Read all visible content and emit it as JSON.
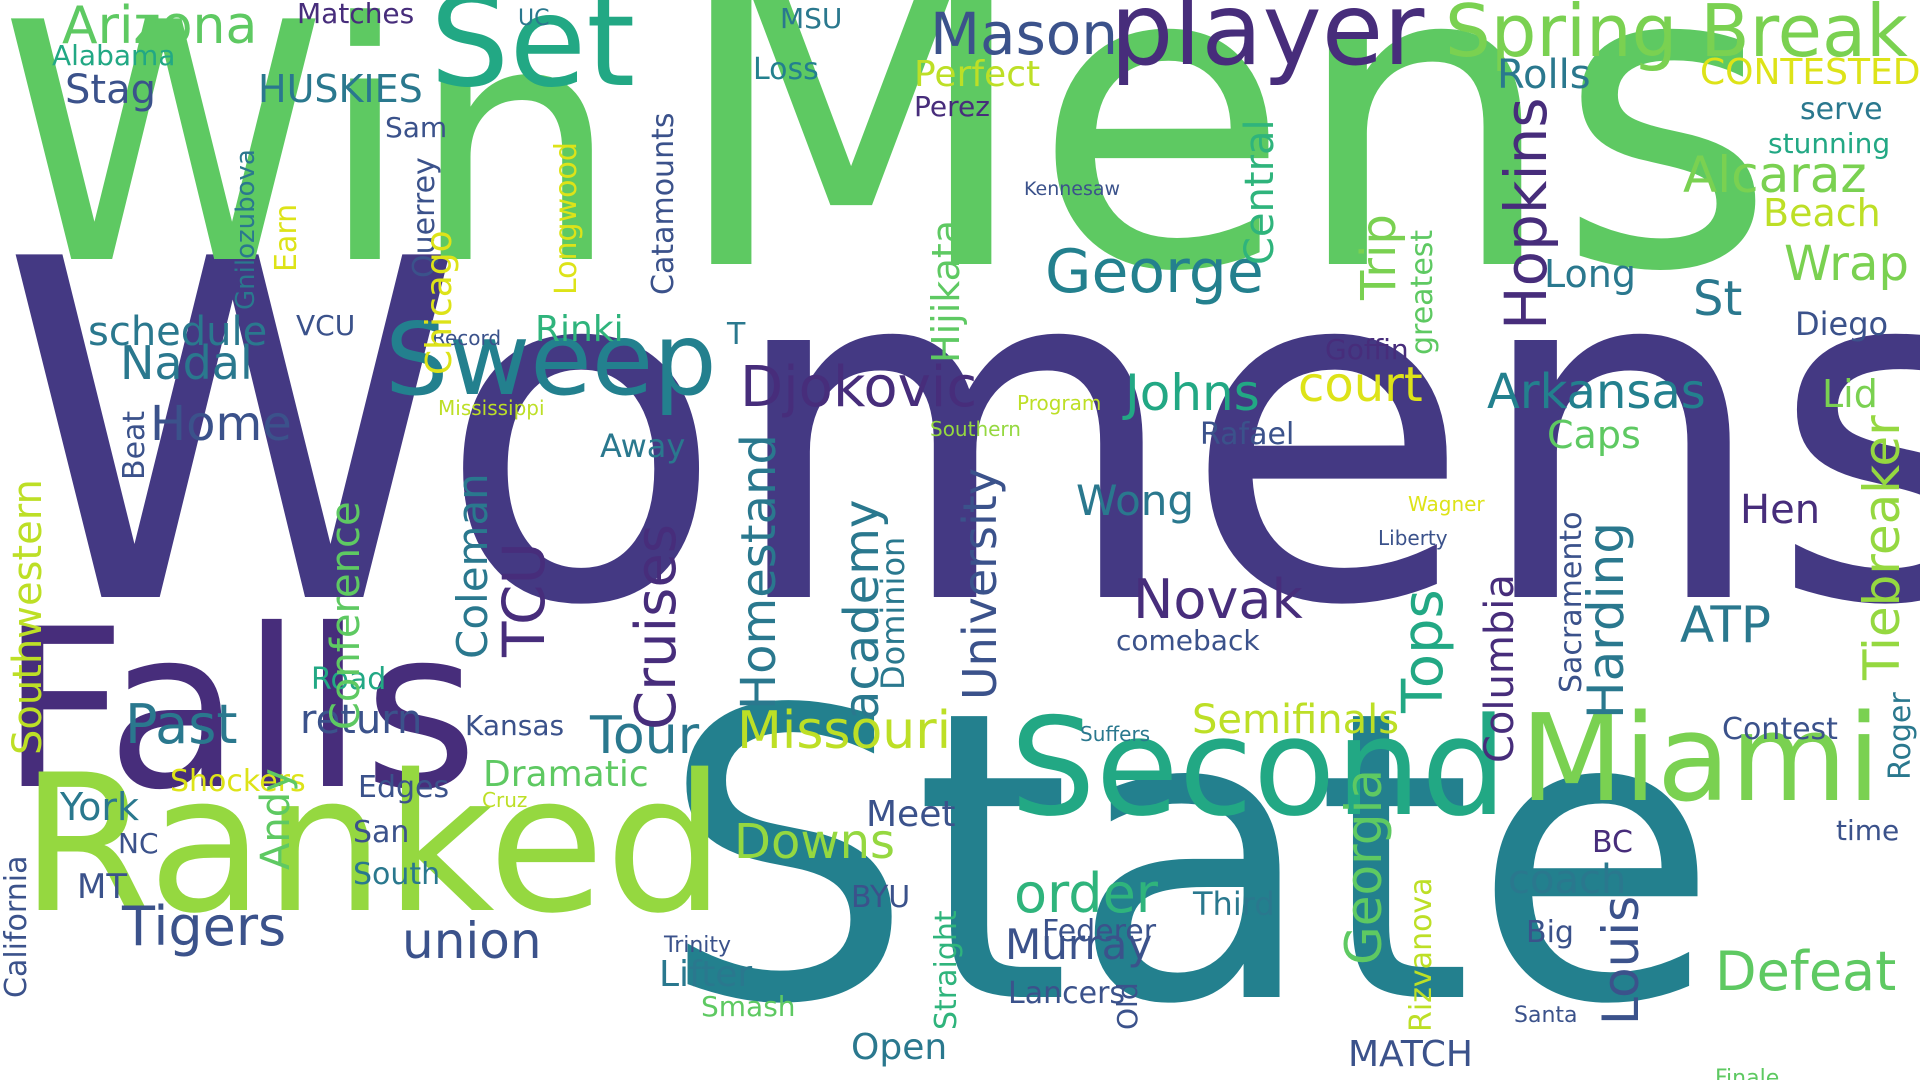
{
  "words": [
    {
      "text": "Mens",
      "color": "#5ec962",
      "orientation": "horizontal"
    },
    {
      "text": "Womens",
      "color": "#443983",
      "orientation": "horizontal"
    },
    {
      "text": "Win",
      "color": "#5ec962",
      "orientation": "horizontal"
    },
    {
      "text": "State",
      "color": "#23808e",
      "orientation": "horizontal"
    },
    {
      "text": "Falls",
      "color": "#472d7b",
      "orientation": "horizontal"
    },
    {
      "text": "Ranked",
      "color": "#95d840",
      "orientation": "horizontal"
    },
    {
      "text": "Second",
      "color": "#22a884",
      "orientation": "horizontal"
    },
    {
      "text": "Miami",
      "color": "#7ad151",
      "orientation": "horizontal"
    },
    {
      "text": "Set",
      "color": "#22a884",
      "orientation": "horizontal"
    },
    {
      "text": "player",
      "color": "#472d7b",
      "orientation": "horizontal"
    },
    {
      "text": "Sweep",
      "color": "#23808e",
      "orientation": "horizontal"
    },
    {
      "text": "Spring Break",
      "color": "#7ad151",
      "orientation": "horizontal"
    },
    {
      "text": "Arizona",
      "color": "#5ec962",
      "orientation": "horizontal"
    },
    {
      "text": "Mason",
      "color": "#3b528b",
      "orientation": "horizontal"
    },
    {
      "text": "George",
      "color": "#23808e",
      "orientation": "horizontal"
    },
    {
      "text": "Djokovic",
      "color": "#472d7b",
      "orientation": "horizontal"
    },
    {
      "text": "Johns",
      "color": "#22a884",
      "orientation": "horizontal"
    },
    {
      "text": "court",
      "color": "#dde318",
      "orientation": "horizontal"
    },
    {
      "text": "Arkansas",
      "color": "#23808e",
      "orientation": "horizontal"
    },
    {
      "text": "Alcaraz",
      "color": "#7ad151",
      "orientation": "horizontal"
    },
    {
      "text": "Wrap",
      "color": "#7ad151",
      "orientation": "horizontal"
    },
    {
      "text": "Nadal",
      "color": "#2a788e",
      "orientation": "horizontal"
    },
    {
      "text": "Home",
      "color": "#3b528b",
      "orientation": "horizontal"
    },
    {
      "text": "Novak",
      "color": "#472d7b",
      "orientation": "horizontal"
    },
    {
      "text": "Past",
      "color": "#2a788e",
      "orientation": "horizontal"
    },
    {
      "text": "Missouri",
      "color": "#bddf26",
      "orientation": "horizontal"
    },
    {
      "text": "Tour",
      "color": "#2a788e",
      "orientation": "horizontal"
    },
    {
      "text": "Semifinals",
      "color": "#bddf26",
      "orientation": "horizontal"
    },
    {
      "text": "return",
      "color": "#3b528b",
      "orientation": "horizontal"
    },
    {
      "text": "Downs",
      "color": "#95d840",
      "orientation": "horizontal"
    },
    {
      "text": "order",
      "color": "#2fb47c",
      "orientation": "horizontal"
    },
    {
      "text": "Tigers",
      "color": "#3b528b",
      "orientation": "horizontal"
    },
    {
      "text": "union",
      "color": "#3b528b",
      "orientation": "horizontal"
    },
    {
      "text": "Murray",
      "color": "#3b528b",
      "orientation": "horizontal"
    },
    {
      "text": "Defeat",
      "color": "#5ec962",
      "orientation": "horizontal"
    },
    {
      "text": "coach",
      "color": "#2a788e",
      "orientation": "horizontal"
    },
    {
      "text": "ATP",
      "color": "#2a788e",
      "orientation": "horizontal"
    },
    {
      "text": "Wong",
      "color": "#2a788e",
      "orientation": "horizontal"
    },
    {
      "text": "Hen",
      "color": "#472d7b",
      "orientation": "horizontal"
    },
    {
      "text": "St",
      "color": "#2a788e",
      "orientation": "horizontal"
    },
    {
      "text": "Long",
      "color": "#2a788e",
      "orientation": "horizontal"
    },
    {
      "text": "Beach",
      "color": "#bddf26",
      "orientation": "horizontal"
    },
    {
      "text": "Caps",
      "color": "#5ec962",
      "orientation": "horizontal"
    },
    {
      "text": "Lid",
      "color": "#7ad151",
      "orientation": "horizontal"
    },
    {
      "text": "serve",
      "color": "#2a788e",
      "orientation": "horizontal"
    },
    {
      "text": "stunning",
      "color": "#22a884",
      "orientation": "horizontal"
    },
    {
      "text": "Rolls",
      "color": "#2a788e",
      "orientation": "horizontal"
    },
    {
      "text": "CONTESTED",
      "color": "#dde318",
      "orientation": "horizontal"
    },
    {
      "text": "Perfect",
      "color": "#bddf26",
      "orientation": "horizontal"
    },
    {
      "text": "Perez",
      "color": "#472d7b",
      "orientation": "horizontal"
    },
    {
      "text": "Loss",
      "color": "#23808e",
      "orientation": "horizontal"
    },
    {
      "text": "MSU",
      "color": "#2a788e",
      "orientation": "horizontal"
    },
    {
      "text": "UC",
      "color": "#2a788e",
      "orientation": "horizontal"
    },
    {
      "text": "Matches",
      "color": "#472d7b",
      "orientation": "horizontal"
    },
    {
      "text": "Alabama",
      "color": "#22a884",
      "orientation": "horizontal"
    },
    {
      "text": "Stag",
      "color": "#3b528b",
      "orientation": "horizontal"
    },
    {
      "text": "HUSKIES",
      "color": "#2a788e",
      "orientation": "horizontal"
    },
    {
      "text": "Sam",
      "color": "#3b528b",
      "orientation": "horizontal"
    },
    {
      "text": "schedule",
      "color": "#2a788e",
      "orientation": "horizontal"
    },
    {
      "text": "VCU",
      "color": "#3b528b",
      "orientation": "horizontal"
    },
    {
      "text": "Rinki",
      "color": "#2fb47c",
      "orientation": "horizontal"
    },
    {
      "text": "Record",
      "color": "#3b528b",
      "orientation": "horizontal"
    },
    {
      "text": "Mississippi",
      "color": "#bddf26",
      "orientation": "horizontal"
    },
    {
      "text": "Program",
      "color": "#bddf26",
      "orientation": "horizontal"
    },
    {
      "text": "Southern",
      "color": "#95d840",
      "orientation": "horizontal"
    },
    {
      "text": "T",
      "color": "#2a788e",
      "orientation": "horizontal"
    },
    {
      "text": "Goffin",
      "color": "#472d7b",
      "orientation": "horizontal"
    },
    {
      "text": "Diego",
      "color": "#3b528b",
      "orientation": "horizontal"
    },
    {
      "text": "Rafael",
      "color": "#3b528b",
      "orientation": "horizontal"
    },
    {
      "text": "Kennesaw",
      "color": "#3b528b",
      "orientation": "horizontal"
    },
    {
      "text": "Away",
      "color": "#2a788e",
      "orientation": "horizontal"
    },
    {
      "text": "Wagner",
      "color": "#dde318",
      "orientation": "horizontal"
    },
    {
      "text": "Liberty",
      "color": "#3b528b",
      "orientation": "horizontal"
    },
    {
      "text": "comeback",
      "color": "#3b528b",
      "orientation": "horizontal"
    },
    {
      "text": "Road",
      "color": "#22a884",
      "orientation": "horizontal"
    },
    {
      "text": "Kansas",
      "color": "#3b528b",
      "orientation": "horizontal"
    },
    {
      "text": "Suffers",
      "color": "#2a788e",
      "orientation": "horizontal"
    },
    {
      "text": "Contest",
      "color": "#3b528b",
      "orientation": "horizontal"
    },
    {
      "text": "Shockers",
      "color": "#dde318",
      "orientation": "horizontal"
    },
    {
      "text": "Dramatic",
      "color": "#5ec962",
      "orientation": "horizontal"
    },
    {
      "text": "Edges",
      "color": "#3b528b",
      "orientation": "horizontal"
    },
    {
      "text": "Cruz",
      "color": "#bddf26",
      "orientation": "horizontal"
    },
    {
      "text": "York",
      "color": "#2a788e",
      "orientation": "horizontal"
    },
    {
      "text": "NC",
      "color": "#3b528b",
      "orientation": "horizontal"
    },
    {
      "text": "San",
      "color": "#3b528b",
      "orientation": "horizontal"
    },
    {
      "text": "Meet",
      "color": "#3b528b",
      "orientation": "horizontal"
    },
    {
      "text": "BC",
      "color": "#472d7b",
      "orientation": "horizontal"
    },
    {
      "text": "time",
      "color": "#3b528b",
      "orientation": "horizontal"
    },
    {
      "text": "MT",
      "color": "#3b528b",
      "orientation": "horizontal"
    },
    {
      "text": "South",
      "color": "#2a788e",
      "orientation": "horizontal"
    },
    {
      "text": "BYU",
      "color": "#3b528b",
      "orientation": "horizontal"
    },
    {
      "text": "Third",
      "color": "#2a788e",
      "orientation": "horizontal"
    },
    {
      "text": "Big",
      "color": "#3b528b",
      "orientation": "horizontal"
    },
    {
      "text": "Federer",
      "color": "#3b528b",
      "orientation": "horizontal"
    },
    {
      "text": "Trinity",
      "color": "#3b528b",
      "orientation": "horizontal"
    },
    {
      "text": "Lifter",
      "color": "#2a788e",
      "orientation": "horizontal"
    },
    {
      "text": "Smash",
      "color": "#5ec962",
      "orientation": "horizontal"
    },
    {
      "text": "Lancers",
      "color": "#3b528b",
      "orientation": "horizontal"
    },
    {
      "text": "Santa",
      "color": "#3b528b",
      "orientation": "horizontal"
    },
    {
      "text": "Open",
      "color": "#2a788e",
      "orientation": "horizontal"
    },
    {
      "text": "MATCH",
      "color": "#3b528b",
      "orientation": "horizontal"
    },
    {
      "text": "Finale",
      "color": "#5ec962",
      "orientation": "horizontal"
    },
    {
      "text": "Gnilozubova",
      "color": "#2a788e",
      "orientation": "vertical"
    },
    {
      "text": "Earn",
      "color": "#dde318",
      "orientation": "vertical"
    },
    {
      "text": "Querrey",
      "color": "#3b528b",
      "orientation": "vertical"
    },
    {
      "text": "Chicago",
      "color": "#dde318",
      "orientation": "vertical"
    },
    {
      "text": "Longwood",
      "color": "#dde318",
      "orientation": "vertical"
    },
    {
      "text": "Catamounts",
      "color": "#3b528b",
      "orientation": "vertical"
    },
    {
      "text": "Hijikata",
      "color": "#5ec962",
      "orientation": "vertical"
    },
    {
      "text": "Central",
      "color": "#2fb47c",
      "orientation": "vertical"
    },
    {
      "text": "Trip",
      "color": "#7ad151",
      "orientation": "vertical"
    },
    {
      "text": "greatest",
      "color": "#5ec962",
      "orientation": "vertical"
    },
    {
      "text": "Hopkins",
      "color": "#472d7b",
      "orientation": "vertical"
    },
    {
      "text": "Tiebreaker",
      "color": "#95d840",
      "orientation": "vertical"
    },
    {
      "text": "Roger",
      "color": "#2a788e",
      "orientation": "vertical"
    },
    {
      "text": "Southwestern",
      "color": "#bddf26",
      "orientation": "vertical"
    },
    {
      "text": "California",
      "color": "#3b528b",
      "orientation": "vertical"
    },
    {
      "text": "Beat",
      "color": "#3b528b",
      "orientation": "vertical"
    },
    {
      "text": "Conference",
      "color": "#5ec962",
      "orientation": "vertical"
    },
    {
      "text": "Coleman",
      "color": "#2a788e",
      "orientation": "vertical"
    },
    {
      "text": "TCU",
      "color": "#472d7b",
      "orientation": "vertical"
    },
    {
      "text": "Cruises",
      "color": "#472d7b",
      "orientation": "vertical"
    },
    {
      "text": "Homestand",
      "color": "#2a788e",
      "orientation": "vertical"
    },
    {
      "text": "academy",
      "color": "#2a788e",
      "orientation": "vertical"
    },
    {
      "text": "Dominion",
      "color": "#2a788e",
      "orientation": "vertical"
    },
    {
      "text": "University",
      "color": "#3b528b",
      "orientation": "vertical"
    },
    {
      "text": "Tops",
      "color": "#22a884",
      "orientation": "vertical"
    },
    {
      "text": "Columbia",
      "color": "#472d7b",
      "orientation": "vertical"
    },
    {
      "text": "Harding",
      "color": "#2a788e",
      "orientation": "vertical"
    },
    {
      "text": "Sacramento",
      "color": "#3b528b",
      "orientation": "vertical"
    },
    {
      "text": "Louis",
      "color": "#3b528b",
      "orientation": "vertical"
    },
    {
      "text": "Georgia",
      "color": "#5ec962",
      "orientation": "vertical"
    },
    {
      "text": "Rizvanova",
      "color": "#bddf26",
      "orientation": "vertical"
    },
    {
      "text": "Andy",
      "color": "#5ec962",
      "orientation": "vertical"
    },
    {
      "text": "Straight",
      "color": "#2fb47c",
      "orientation": "vertical"
    },
    {
      "text": "Old",
      "color": "#3b528b",
      "orientation": "vertical"
    }
  ]
}
